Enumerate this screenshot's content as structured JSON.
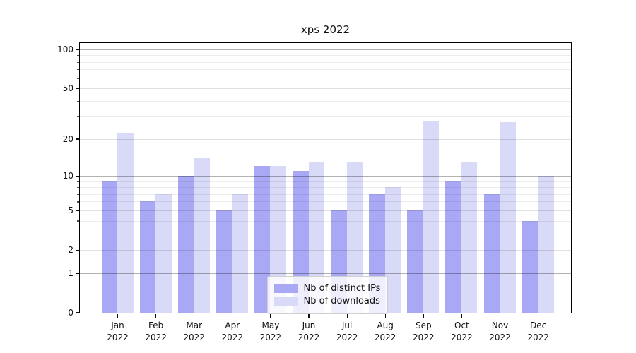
{
  "title": "xps 2022",
  "chart_data": {
    "type": "bar",
    "title": "xps 2022",
    "categories": [
      "Jan 2022",
      "Feb 2022",
      "Mar 2022",
      "Apr 2022",
      "May 2022",
      "Jun 2022",
      "Jul 2022",
      "Aug 2022",
      "Sep 2022",
      "Oct 2022",
      "Nov 2022",
      "Dec 2022"
    ],
    "x_tick_month": [
      "Jan",
      "Feb",
      "Mar",
      "Apr",
      "May",
      "Jun",
      "Jul",
      "Aug",
      "Sep",
      "Oct",
      "Nov",
      "Dec"
    ],
    "x_tick_year": "2022",
    "series": [
      {
        "name": "Nb of distinct IPs",
        "color": "#a8a8f5",
        "values": [
          9,
          6,
          10,
          5,
          12,
          11,
          5,
          7,
          5,
          9,
          7,
          4
        ]
      },
      {
        "name": "Nb of downloads",
        "color": "#d9d9f8",
        "values": [
          22,
          7,
          14,
          7,
          12,
          13,
          13,
          8,
          28,
          13,
          27,
          10
        ]
      }
    ],
    "xlabel": "",
    "ylabel": "",
    "yscale": "symlog",
    "y_ticks": [
      0,
      1,
      2,
      5,
      10,
      20,
      50,
      100
    ],
    "y_minor_gridlines": [
      3,
      4,
      6,
      7,
      8,
      9,
      30,
      40,
      60,
      70,
      80,
      90
    ],
    "ylim": [
      0,
      112
    ],
    "grid": true,
    "legend_position": "lower center"
  },
  "legend": {
    "items": [
      {
        "label": "Nb of distinct IPs",
        "color": "#a8a8f5"
      },
      {
        "label": "Nb of downloads",
        "color": "#d9d9f8"
      }
    ]
  }
}
